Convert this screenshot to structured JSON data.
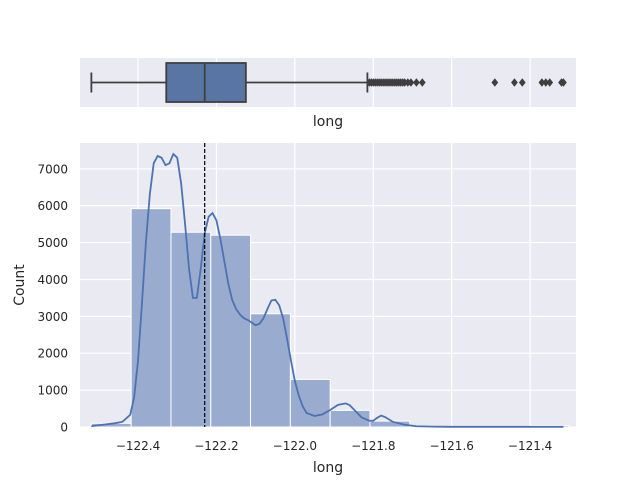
{
  "colors": {
    "background": "#eaeaf2",
    "grid": "#ffffff",
    "box_fill": "#5975a4",
    "box_line": "#3f3f3f",
    "hist_fill": "#9aabd0",
    "kde_line": "#4c72b0",
    "median_line": "#000000",
    "text": "#262626"
  },
  "chart_data": [
    {
      "type": "box",
      "xlabel": "long",
      "xlim": [
        -122.548,
        -121.283
      ],
      "grid": true,
      "box": {
        "whisker_low": -122.519,
        "q1": -122.328,
        "median": -122.23,
        "q3": -122.125,
        "whisker_high": -121.815
      },
      "outliers": [
        -121.81,
        -121.805,
        -121.8,
        -121.795,
        -121.79,
        -121.785,
        -121.78,
        -121.775,
        -121.77,
        -121.765,
        -121.76,
        -121.755,
        -121.75,
        -121.745,
        -121.74,
        -121.735,
        -121.73,
        -121.725,
        -121.72,
        -121.712,
        -121.704,
        -121.69,
        -121.675,
        -121.49,
        -121.44,
        -121.42,
        -121.37,
        -121.36,
        -121.35,
        -121.32,
        -121.315
      ]
    },
    {
      "type": "histogram",
      "xlabel": "long",
      "ylabel": "Count",
      "xlim": [
        -122.548,
        -121.283
      ],
      "ylim": [
        0,
        7700
      ],
      "grid": true,
      "xticks": [
        -122.4,
        -122.2,
        -122.0,
        -121.8,
        -121.6,
        -121.4
      ],
      "xtick_labels": [
        "−122.4",
        "−122.2",
        "−122.0",
        "−121.8",
        "−121.6",
        "−121.4"
      ],
      "yticks": [
        0,
        1000,
        2000,
        3000,
        4000,
        5000,
        6000,
        7000
      ],
      "ytick_labels": [
        "0",
        "1000",
        "2000",
        "3000",
        "4000",
        "5000",
        "6000",
        "7000"
      ],
      "bins": [
        {
          "x0": -122.519,
          "x1": -122.4175,
          "count": 100
        },
        {
          "x0": -122.4175,
          "x1": -122.316,
          "count": 5920
        },
        {
          "x0": -122.316,
          "x1": -122.2145,
          "count": 5280
        },
        {
          "x0": -122.2145,
          "x1": -122.113,
          "count": 5200
        },
        {
          "x0": -122.113,
          "x1": -122.0115,
          "count": 3070
        },
        {
          "x0": -122.0115,
          "x1": -121.91,
          "count": 1290
        },
        {
          "x0": -121.91,
          "x1": -121.8085,
          "count": 450
        },
        {
          "x0": -121.8085,
          "x1": -121.707,
          "count": 160
        },
        {
          "x0": -121.707,
          "x1": -121.6055,
          "count": 10
        },
        {
          "x0": -121.6055,
          "x1": -121.504,
          "count": 0
        },
        {
          "x0": -121.504,
          "x1": -121.4025,
          "count": 5
        },
        {
          "x0": -121.4025,
          "x1": -121.301,
          "count": 40
        }
      ],
      "kde": {
        "x": [
          -122.519,
          -122.49,
          -122.46,
          -122.44,
          -122.42,
          -122.41,
          -122.4,
          -122.39,
          -122.38,
          -122.37,
          -122.36,
          -122.35,
          -122.34,
          -122.33,
          -122.32,
          -122.31,
          -122.3,
          -122.29,
          -122.28,
          -122.27,
          -122.26,
          -122.25,
          -122.24,
          -122.23,
          -122.22,
          -122.21,
          -122.2,
          -122.19,
          -122.18,
          -122.17,
          -122.16,
          -122.15,
          -122.14,
          -122.13,
          -122.12,
          -122.11,
          -122.1,
          -122.09,
          -122.08,
          -122.07,
          -122.06,
          -122.05,
          -122.04,
          -122.03,
          -122.02,
          -122.01,
          -122.0,
          -121.99,
          -121.98,
          -121.97,
          -121.95,
          -121.93,
          -121.91,
          -121.89,
          -121.87,
          -121.86,
          -121.85,
          -121.83,
          -121.81,
          -121.8,
          -121.79,
          -121.78,
          -121.77,
          -121.75,
          -121.72,
          -121.69,
          -121.65,
          -121.6,
          -121.5,
          -121.4,
          -121.315
        ],
        "y": [
          20,
          60,
          100,
          140,
          330,
          800,
          1800,
          3350,
          5000,
          6300,
          7150,
          7350,
          7300,
          7100,
          7150,
          7400,
          7300,
          6600,
          5500,
          4300,
          3500,
          3500,
          4300,
          5250,
          5700,
          5800,
          5600,
          5100,
          4500,
          3900,
          3450,
          3200,
          3050,
          2950,
          2900,
          2830,
          2760,
          2800,
          2950,
          3200,
          3430,
          3450,
          3300,
          2950,
          2400,
          1800,
          1250,
          850,
          560,
          380,
          300,
          340,
          460,
          600,
          640,
          590,
          480,
          260,
          170,
          170,
          250,
          310,
          270,
          140,
          60,
          20,
          10,
          5,
          5,
          5,
          5
        ]
      },
      "median": -122.23
    }
  ]
}
